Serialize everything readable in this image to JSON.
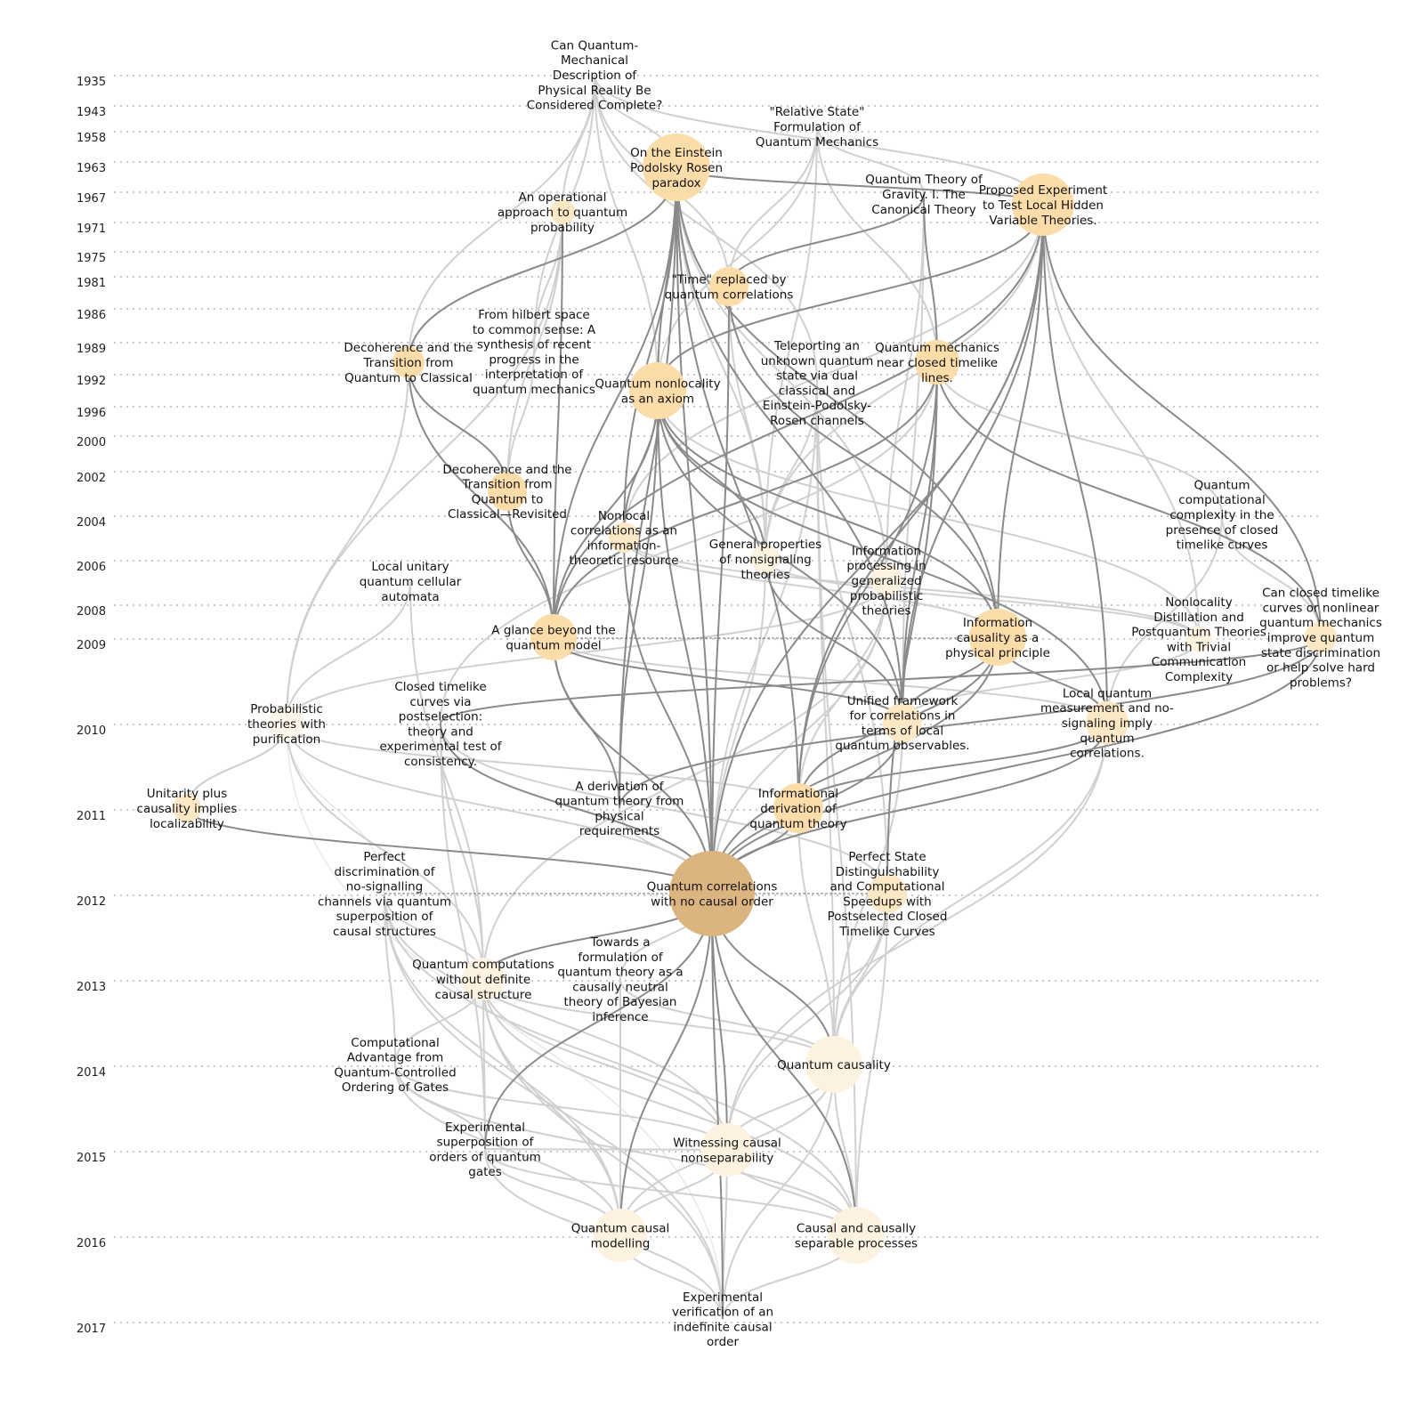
{
  "years": [
    "1935",
    "1943",
    "1958",
    "1963",
    "1967",
    "1971",
    "1975",
    "1981",
    "1986",
    "1989",
    "1992",
    "1996",
    "2000",
    "2002",
    "2004",
    "2006",
    "2008",
    "2009",
    "2010",
    "2011",
    "2012",
    "2013",
    "2014",
    "2015",
    "2016",
    "2017"
  ],
  "colors": {
    "highlight": "#dbb47f",
    "high": "#fcdca9",
    "mid": "#fde8c6",
    "low": "#fdf2e0",
    "faint": "#fef7ec",
    "edge_strong": "#8a8a8a",
    "edge_weak": "#d0d0d0"
  },
  "nodes": [
    {
      "id": "n1",
      "year": "1935",
      "tone": "faint",
      "lines": [
        "Can Quantum-",
        "Mechanical",
        "Description of",
        "Physical Reality Be",
        "Considered Complete?"
      ]
    },
    {
      "id": "n2",
      "year": "1958",
      "tone": "faint",
      "lines": [
        "\"Relative State\"",
        "Formulation of",
        "Quantum Mechanics"
      ]
    },
    {
      "id": "n3",
      "year": "1963",
      "tone": "high",
      "lines": [
        "On the Einstein",
        "Podolsky Rosen",
        "paradox"
      ]
    },
    {
      "id": "n4",
      "year": "1967",
      "tone": "faint",
      "lines": [
        "Quantum Theory of",
        "Gravity. I. The",
        "Canonical Theory"
      ]
    },
    {
      "id": "n5",
      "year": "1967",
      "tone": "high",
      "lines": [
        "Proposed Experiment",
        "to Test Local Hidden",
        "Variable Theories."
      ]
    },
    {
      "id": "n6",
      "year": "1971",
      "tone": "mid",
      "lines": [
        "An operational",
        "approach to quantum",
        "probability"
      ]
    },
    {
      "id": "n7",
      "year": "1981",
      "tone": "high",
      "lines": [
        "\"Time\" replaced by",
        "quantum correlations"
      ]
    },
    {
      "id": "n8",
      "year": "1989",
      "tone": "faint",
      "lines": [
        "From hilbert space",
        "to common sense: A",
        "synthesis of recent",
        "progress in the",
        "interpretation of",
        "quantum mechanics"
      ]
    },
    {
      "id": "n9",
      "year": "1989",
      "tone": "high",
      "lines": [
        "Decoherence and the",
        "Transition from",
        "Quantum to Classical"
      ]
    },
    {
      "id": "n10",
      "year": "1989",
      "tone": "high",
      "lines": [
        "Quantum mechanics",
        "near closed timelike",
        "lines."
      ]
    },
    {
      "id": "n11",
      "year": "1992",
      "tone": "high",
      "lines": [
        "Quantum nonlocality",
        "as an axiom"
      ]
    },
    {
      "id": "n12",
      "year": "1992",
      "tone": "faint",
      "lines": [
        "Teleporting an",
        "unknown quantum",
        "state via dual",
        "classical and",
        "Einstein-Podolsky-",
        "Rosen channels"
      ]
    },
    {
      "id": "n13",
      "year": "2002",
      "tone": "high",
      "lines": [
        "Decoherence and the",
        "Transition from",
        "Quantum to",
        "Classical—Revisited"
      ]
    },
    {
      "id": "n14",
      "year": "2002",
      "tone": "faint",
      "lines": [
        "Quantum",
        "computational",
        "complexity in the",
        "presence of closed",
        "timelike curves"
      ]
    },
    {
      "id": "n15",
      "year": "2004",
      "tone": "mid",
      "lines": [
        "Nonlocal",
        "correlations as an",
        "information-",
        "theoretic resource"
      ]
    },
    {
      "id": "n16",
      "year": "2006",
      "tone": "low",
      "lines": [
        "General properties",
        "of nonsignaling",
        "theories"
      ]
    },
    {
      "id": "n17",
      "year": "2006",
      "tone": "faint",
      "lines": [
        "Local unitary",
        "quantum cellular",
        "automata"
      ]
    },
    {
      "id": "n18",
      "year": "2006",
      "tone": "low",
      "lines": [
        "Information",
        "processing in",
        "generalized",
        "probabilistic",
        "theories"
      ]
    },
    {
      "id": "n19",
      "year": "2009",
      "tone": "high",
      "lines": [
        "A glance beyond the",
        "quantum model"
      ]
    },
    {
      "id": "n20",
      "year": "2009",
      "tone": "high",
      "lines": [
        "Information",
        "causality as a",
        "physical principle"
      ]
    },
    {
      "id": "n21",
      "year": "2009",
      "tone": "low",
      "lines": [
        "Nonlocality",
        "Distillation and",
        "Postquantum Theories",
        "with Trivial",
        "Communication",
        "Complexity"
      ]
    },
    {
      "id": "n22",
      "year": "2009",
      "tone": "mid",
      "lines": [
        "Can closed timelike",
        "curves or nonlinear",
        "quantum mechanics",
        "improve quantum",
        "state discrimination",
        "or help solve hard",
        "problems?"
      ]
    },
    {
      "id": "n23",
      "year": "2010",
      "tone": "faint",
      "lines": [
        "Probabilistic",
        "theories with",
        "purification"
      ]
    },
    {
      "id": "n24",
      "year": "2010",
      "tone": "faint",
      "lines": [
        "Closed timelike",
        "curves via",
        "postselection:",
        "theory and",
        "experimental test of",
        "consistency."
      ]
    },
    {
      "id": "n25",
      "year": "2010",
      "tone": "mid",
      "lines": [
        "Unified framework",
        "for correlations in",
        "terms of local",
        "quantum observables."
      ]
    },
    {
      "id": "n26",
      "year": "2010",
      "tone": "mid",
      "lines": [
        "Local quantum",
        "measurement and no-",
        "signaling imply",
        "quantum",
        "correlations."
      ]
    },
    {
      "id": "n27",
      "year": "2011",
      "tone": "mid",
      "lines": [
        "Unitarity plus",
        "causality implies",
        "localizability"
      ]
    },
    {
      "id": "n28",
      "year": "2011",
      "tone": "faint",
      "lines": [
        "A derivation of",
        "quantum theory from",
        "physical",
        "requirements"
      ]
    },
    {
      "id": "n29",
      "year": "2011",
      "tone": "high",
      "lines": [
        "Informational",
        "derivation of",
        "quantum theory"
      ]
    },
    {
      "id": "n30",
      "year": "2012",
      "tone": "highlight",
      "lines": [
        "Quantum correlations",
        "with no causal order"
      ]
    },
    {
      "id": "n31",
      "year": "2012",
      "tone": "faint",
      "lines": [
        "Perfect",
        "discrimination of",
        "no-signalling",
        "channels via quantum",
        "superposition of",
        "causal structures"
      ]
    },
    {
      "id": "n32",
      "year": "2012",
      "tone": "mid",
      "lines": [
        "Perfect State",
        "Distinguishability",
        "and Computational",
        "Speedups with",
        "Postselected Closed",
        "Timelike Curves"
      ]
    },
    {
      "id": "n33",
      "year": "2013",
      "tone": "low",
      "lines": [
        "Quantum computations",
        "without definite",
        "causal structure"
      ]
    },
    {
      "id": "n34",
      "year": "2013",
      "tone": "faint",
      "lines": [
        "Towards a",
        "formulation of",
        "quantum theory as a",
        "causally neutral",
        "theory of Bayesian",
        "inference"
      ]
    },
    {
      "id": "n35",
      "year": "2014",
      "tone": "faint",
      "lines": [
        "Computational",
        "Advantage from",
        "Quantum-Controlled",
        "Ordering of Gates"
      ]
    },
    {
      "id": "n36",
      "year": "2014",
      "tone": "low",
      "lines": [
        "Quantum causality"
      ]
    },
    {
      "id": "n37",
      "year": "2015",
      "tone": "faint",
      "lines": [
        "Experimental",
        "superposition of",
        "orders of quantum",
        "gates"
      ]
    },
    {
      "id": "n38",
      "year": "2015",
      "tone": "low",
      "lines": [
        "Witnessing causal",
        "nonseparability"
      ]
    },
    {
      "id": "n39",
      "year": "2016",
      "tone": "low",
      "lines": [
        "Quantum causal",
        "modelling"
      ]
    },
    {
      "id": "n40",
      "year": "2016",
      "tone": "low",
      "lines": [
        "Causal and causally",
        "separable processes"
      ]
    },
    {
      "id": "n41",
      "year": "2017",
      "tone": "faint",
      "lines": [
        "Experimental",
        "verification of an",
        "indefinite causal",
        "order"
      ]
    }
  ]
}
